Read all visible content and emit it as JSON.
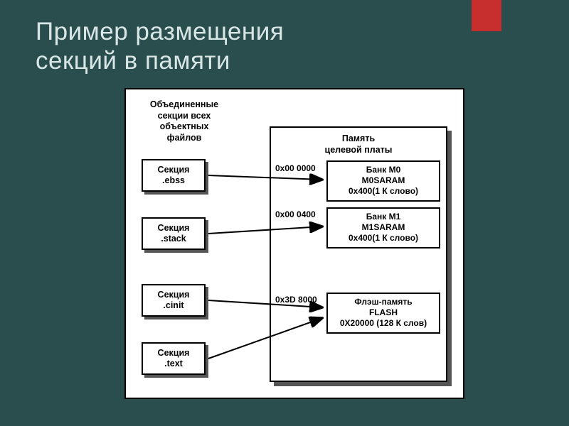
{
  "colors": {
    "background": "#2a4d4e",
    "accent": "#c72f2f",
    "panel_bg": "#ffffff",
    "border": "#000000",
    "shadow": "#555555",
    "title_text": "#d9e6e6"
  },
  "slide": {
    "title": "Пример размещения\nсекций в памяти"
  },
  "left_column": {
    "header": "Объединенные секции всех объектных файлов",
    "sections": [
      {
        "name": "Секция",
        "sub": ".ebss"
      },
      {
        "name": "Секция",
        "sub": ".stack"
      },
      {
        "name": "Секция",
        "sub": ".cinit"
      },
      {
        "name": "Секция",
        "sub": ".text"
      }
    ]
  },
  "memory": {
    "title": "Память\nцелевой платы",
    "entries": [
      {
        "addr": "0x00 0000",
        "line1": "Банк M0",
        "line2": "M0SARAM",
        "line3": "0x400(1 К слово)"
      },
      {
        "addr": "0x00 0400",
        "line1": "Банк M1",
        "line2": "M1SARAM",
        "line3": "0x400(1 К слово)"
      },
      {
        "addr": "0x3D 8000",
        "line1": "Флэш-память",
        "line2": "FLASH",
        "line3": "0X20000 (128 К слов)"
      }
    ]
  },
  "arrows": [
    {
      "from_section": 0,
      "to_bank": 0
    },
    {
      "from_section": 1,
      "to_bank": 1
    },
    {
      "from_section": 2,
      "to_bank": 2
    },
    {
      "from_section": 3,
      "to_bank": 2
    }
  ]
}
